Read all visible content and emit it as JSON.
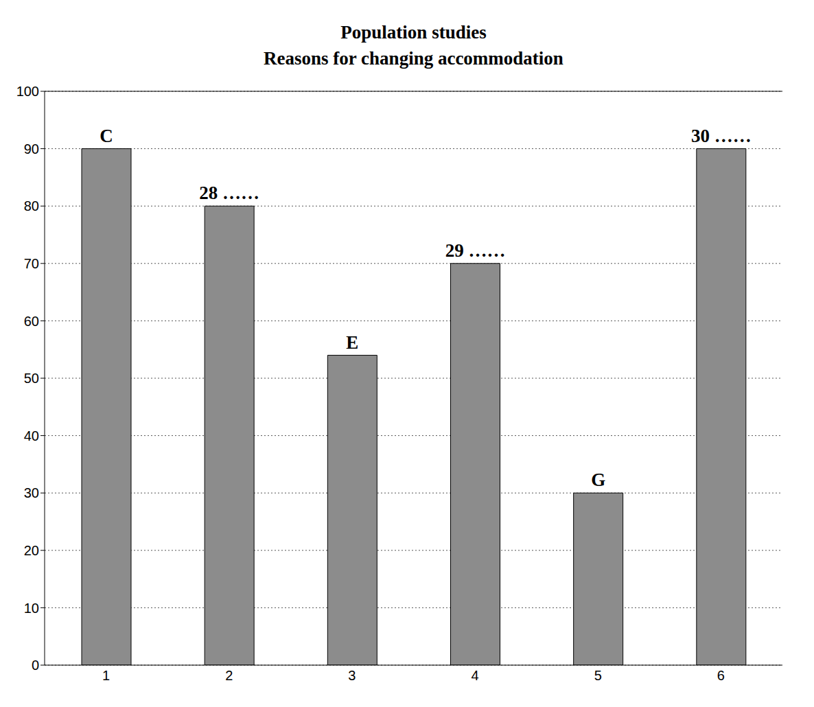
{
  "chart_data": {
    "type": "bar",
    "title": "Population studies",
    "subtitle": "Reasons for changing accommodation",
    "categories": [
      "1",
      "2",
      "3",
      "4",
      "5",
      "6"
    ],
    "values": [
      90,
      80,
      54,
      70,
      30,
      90
    ],
    "annotations": [
      "C",
      "28 ……",
      "E",
      "29 ……",
      "G",
      "30 ……"
    ],
    "color": "#8c8c8c",
    "ylim": [
      0,
      100
    ],
    "yticks": [
      0,
      10,
      20,
      30,
      40,
      50,
      60,
      70,
      80,
      90,
      100
    ],
    "grid": true
  }
}
